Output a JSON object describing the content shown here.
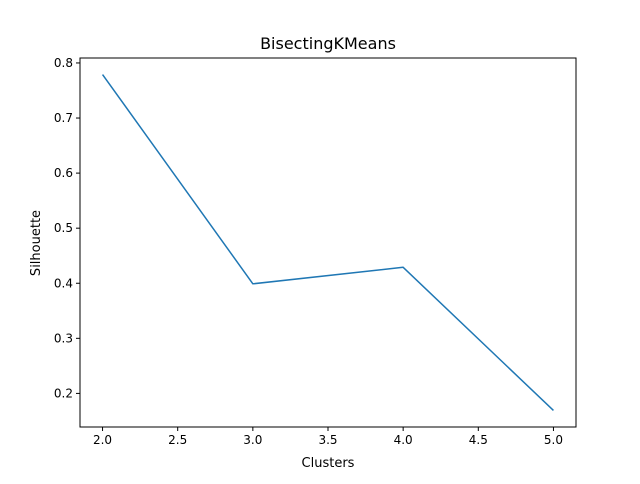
{
  "chart_data": {
    "type": "line",
    "title": "BisectingKMeans",
    "xlabel": "Clusters",
    "ylabel": "Silhouette",
    "x": [
      2.0,
      3.0,
      4.0,
      5.0
    ],
    "series": [
      {
        "values": [
          0.779,
          0.399,
          0.429,
          0.169
        ],
        "color": "#1f77b4"
      }
    ],
    "xlim": [
      1.85,
      5.15
    ],
    "ylim": [
      0.139,
      0.809
    ],
    "xticks": [
      2.0,
      2.5,
      3.0,
      3.5,
      4.0,
      4.5,
      5.0
    ],
    "xtick_labels": [
      "2.0",
      "2.5",
      "3.0",
      "3.5",
      "4.0",
      "4.5",
      "5.0"
    ],
    "yticks": [
      0.2,
      0.3,
      0.4,
      0.5,
      0.6,
      0.7,
      0.8
    ],
    "ytick_labels": [
      "0.2",
      "0.3",
      "0.4",
      "0.5",
      "0.6",
      "0.7",
      "0.8"
    ],
    "grid": false,
    "legend": false
  }
}
